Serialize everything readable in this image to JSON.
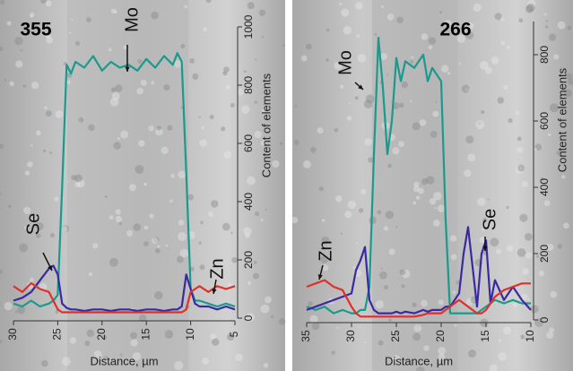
{
  "chart_data": [
    {
      "type": "line",
      "title": "355",
      "xlabel": "Distance, µm",
      "ylabel": "Content of elements",
      "xlim": [
        30,
        5
      ],
      "xticks": [
        30,
        25,
        20,
        15,
        10,
        5
      ],
      "ylim": [
        0,
        1000
      ],
      "yticks": [
        0,
        200,
        400,
        600,
        800,
        1000
      ],
      "x": [
        30,
        29,
        28,
        27,
        26,
        25.5,
        25,
        24.5,
        24,
        23.5,
        23,
        22,
        21,
        20,
        19,
        18,
        17,
        16,
        15,
        14,
        13,
        12,
        11.5,
        11,
        10.5,
        10,
        9.5,
        9,
        8,
        7,
        6,
        5
      ],
      "series": [
        {
          "name": "Mo",
          "color": "#1a9a8c",
          "values": [
            50,
            40,
            60,
            40,
            50,
            60,
            80,
            450,
            870,
            840,
            880,
            860,
            900,
            850,
            880,
            860,
            870,
            850,
            890,
            860,
            900,
            870,
            910,
            880,
            500,
            100,
            60,
            60,
            50,
            40,
            50,
            40
          ]
        },
        {
          "name": "Se",
          "color": "#3a2aa0",
          "values": [
            60,
            70,
            90,
            130,
            170,
            180,
            150,
            50,
            35,
            30,
            30,
            25,
            30,
            30,
            25,
            30,
            30,
            25,
            30,
            30,
            25,
            30,
            30,
            40,
            150,
            100,
            50,
            40,
            40,
            30,
            40,
            30
          ]
        },
        {
          "name": "Zn",
          "color": "#e0302a",
          "values": [
            110,
            90,
            120,
            100,
            90,
            60,
            30,
            20,
            20,
            20,
            20,
            20,
            20,
            20,
            20,
            20,
            20,
            20,
            20,
            20,
            20,
            20,
            20,
            20,
            30,
            90,
            100,
            110,
            90,
            110,
            100,
            110
          ]
        }
      ],
      "annotations": [
        "Mo",
        "Se",
        "Zn"
      ]
    },
    {
      "type": "line",
      "title": "266",
      "xlabel": "Distance, µm",
      "ylabel": "Content of elements",
      "xlim": [
        35,
        10
      ],
      "xticks": [
        35,
        30,
        25,
        20,
        15,
        10
      ],
      "ylim": [
        0,
        900
      ],
      "yticks": [
        0,
        200,
        400,
        600,
        800
      ],
      "x": [
        35,
        34,
        33,
        32,
        31,
        30,
        29.5,
        29,
        28.5,
        28,
        27.5,
        27,
        26.5,
        26,
        25.5,
        25,
        24.5,
        24,
        23,
        22,
        21.5,
        21,
        20,
        19.5,
        19,
        18,
        17.5,
        17,
        16.5,
        16,
        15.5,
        15,
        14.5,
        14,
        13,
        12,
        11,
        10
      ],
      "series": [
        {
          "name": "Mo",
          "color": "#1a9a8c",
          "values": [
            40,
            30,
            40,
            20,
            30,
            20,
            20,
            30,
            30,
            100,
            500,
            850,
            700,
            500,
            600,
            790,
            720,
            780,
            760,
            800,
            720,
            760,
            720,
            300,
            20,
            20,
            20,
            20,
            20,
            20,
            30,
            40,
            50,
            60,
            50,
            60,
            50,
            50
          ]
        },
        {
          "name": "Se",
          "color": "#3a2aa0",
          "values": [
            30,
            40,
            50,
            60,
            70,
            80,
            150,
            180,
            220,
            60,
            30,
            20,
            20,
            20,
            20,
            25,
            20,
            25,
            20,
            30,
            25,
            30,
            30,
            40,
            40,
            80,
            200,
            280,
            160,
            40,
            200,
            240,
            50,
            120,
            60,
            100,
            60,
            30
          ]
        },
        {
          "name": "Zn",
          "color": "#e0302a",
          "values": [
            100,
            110,
            120,
            100,
            90,
            40,
            20,
            10,
            10,
            10,
            10,
            10,
            10,
            10,
            10,
            10,
            10,
            10,
            10,
            15,
            20,
            20,
            20,
            30,
            40,
            60,
            50,
            40,
            30,
            20,
            20,
            30,
            50,
            70,
            90,
            100,
            110,
            110
          ]
        }
      ],
      "annotations": [
        "Mo",
        "Zn",
        "Se"
      ]
    }
  ]
}
